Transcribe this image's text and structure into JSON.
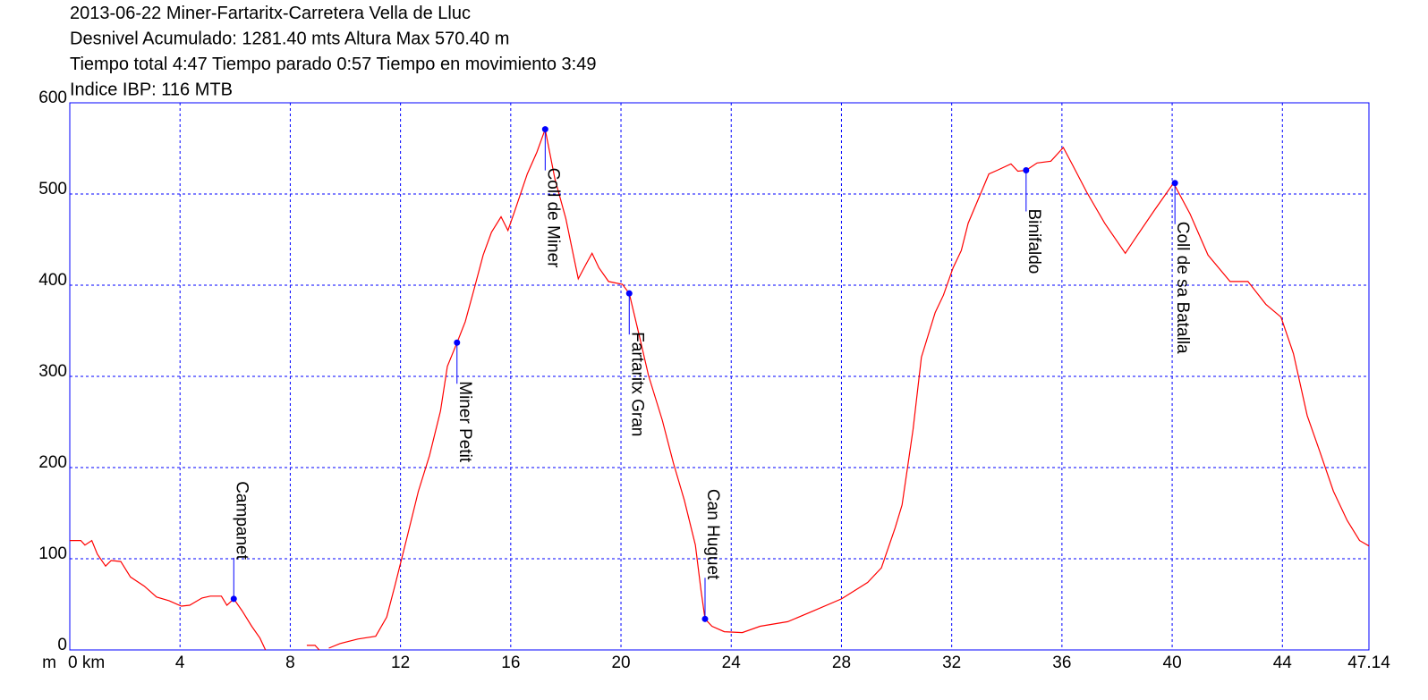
{
  "chart_data": {
    "type": "line",
    "title_lines": [
      "2013-06-22 Miner-Fartaritx-Carretera Vella de Lluc",
      "Desnivel Acumulado: 1281.40 mts  Altura Max 570.40 m",
      "Tiempo total 4:47 Tiempo parado 0:57 Tiempo en movimiento 3:49",
      "Indice IBP: 116 MTB"
    ],
    "ylabel": "m",
    "color": "#ff0000",
    "grid": true,
    "grid_color": "#0000ff",
    "waypoint_color": "#0000ff",
    "xlim": [
      0,
      47.14
    ],
    "ylim": [
      0,
      600
    ],
    "xticks": [
      {
        "value": 0,
        "label": "0 km"
      },
      4,
      8,
      12,
      16,
      20,
      24,
      28,
      32,
      36,
      40,
      44,
      47.14
    ],
    "yticks": [
      0,
      100,
      200,
      300,
      400,
      500,
      600
    ],
    "x": [
      0,
      0.4,
      0.55,
      0.8,
      1.0,
      1.3,
      1.5,
      1.85,
      2.2,
      2.7,
      3.15,
      3.6,
      4.05,
      4.35,
      4.8,
      5.1,
      5.5,
      5.7,
      5.95,
      6.25,
      6.6,
      6.9,
      7.1,
      7.8,
      8.6,
      8.9,
      9.05,
      9.3,
      9.4,
      9.8,
      10.45,
      11.1,
      11.5,
      11.8,
      12.25,
      12.65,
      13.05,
      13.45,
      13.7,
      14.05,
      14.35,
      14.7,
      15.0,
      15.3,
      15.65,
      15.9,
      16.15,
      16.6,
      16.95,
      17.25,
      17.6,
      18.0,
      18.45,
      18.75,
      18.95,
      19.2,
      19.55,
      20.05,
      20.3,
      20.7,
      21.0,
      21.5,
      21.9,
      22.3,
      22.7,
      22.9,
      23.05,
      23.3,
      23.75,
      24.4,
      25.05,
      26.05,
      27.0,
      28.0,
      28.95,
      29.45,
      29.95,
      30.2,
      30.6,
      30.9,
      31.4,
      31.7,
      32.05,
      32.35,
      32.6,
      33.0,
      33.35,
      33.65,
      34.15,
      34.4,
      34.7,
      35.1,
      35.6,
      36.05,
      36.4,
      36.9,
      37.55,
      38.3,
      38.7,
      39.35,
      40.05,
      40.65,
      41.3,
      42.1,
      42.75,
      43.4,
      43.95,
      44.4,
      44.9,
      45.35,
      45.85,
      46.35,
      46.8,
      47.14
    ],
    "y": [
      120,
      120,
      115,
      120,
      105,
      92,
      98,
      97,
      80,
      70,
      58,
      54,
      48,
      49,
      57,
      59,
      59,
      49,
      56,
      43,
      26,
      13,
      0,
      null,
      5,
      5,
      0,
      null,
      2,
      7,
      12,
      15,
      36,
      71,
      125,
      174,
      213,
      262,
      311,
      337,
      360,
      399,
      433,
      458,
      475,
      460,
      482,
      522,
      546,
      571,
      517,
      473,
      407,
      424,
      435,
      419,
      404,
      401,
      391,
      340,
      301,
      252,
      205,
      164,
      115,
      66,
      34,
      26,
      20,
      19,
      26,
      31,
      43,
      56,
      74,
      90,
      134,
      159,
      242,
      321,
      370,
      389,
      419,
      438,
      468,
      497,
      522,
      526,
      533,
      525,
      526,
      534,
      536,
      551,
      531,
      502,
      468,
      435,
      453,
      482,
      512,
      478,
      433,
      404,
      404,
      379,
      365,
      325,
      257,
      218,
      174,
      142,
      120,
      114
    ],
    "waypoints": [
      {
        "label": "Campanet",
        "x": 5.95,
        "y": 56
      },
      {
        "label": "Miner Petit",
        "x": 14.05,
        "y": 337
      },
      {
        "label": "Coll de Miner",
        "x": 17.25,
        "y": 571
      },
      {
        "label": "Fartaritx Gran",
        "x": 20.3,
        "y": 391
      },
      {
        "label": "Can Huguet",
        "x": 23.05,
        "y": 34
      },
      {
        "label": "Binifaldo",
        "x": 34.7,
        "y": 526
      },
      {
        "label": "Coll de sa Batalla",
        "x": 40.1,
        "y": 512
      }
    ]
  }
}
